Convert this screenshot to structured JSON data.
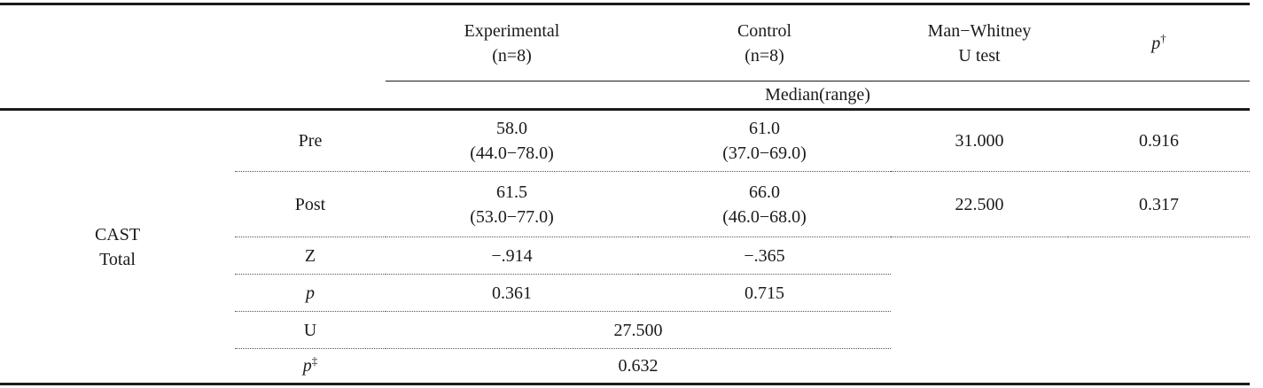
{
  "header": {
    "experimental_label": "Experimental",
    "experimental_n": "(n=8)",
    "control_label": "Control",
    "control_n": "(n=8)",
    "mw_line1": "Man−Whitney",
    "mw_line2": "U test",
    "p_label": "p",
    "p_mark": "†",
    "median_range": "Median(range)"
  },
  "group": {
    "line1": "CAST",
    "line2": "Total"
  },
  "rows": {
    "pre": {
      "label": "Pre",
      "exp_median": "58.0",
      "exp_range": "(44.0−78.0)",
      "ctl_median": "61.0",
      "ctl_range": "(37.0−69.0)",
      "mw": "31.000",
      "p": "0.916"
    },
    "post": {
      "label": "Post",
      "exp_median": "61.5",
      "exp_range": "(53.0−77.0)",
      "ctl_median": "66.0",
      "ctl_range": "(46.0−68.0)",
      "mw": "22.500",
      "p": "0.317"
    },
    "z": {
      "label": "Z",
      "exp": "−.914",
      "ctl": "−.365"
    },
    "p": {
      "label": "p",
      "exp": "0.361",
      "ctl": "0.715"
    },
    "u": {
      "label": "U",
      "value": "27.500"
    },
    "p2": {
      "label": "p",
      "mark": "‡",
      "value": "0.632"
    }
  }
}
